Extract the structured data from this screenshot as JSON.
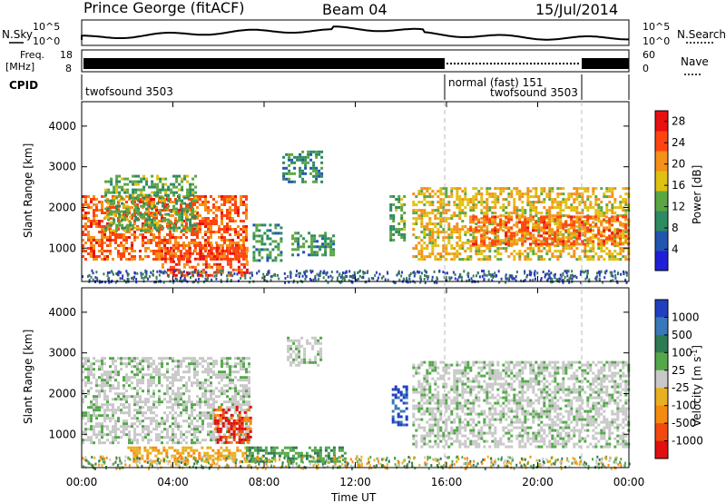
{
  "header": {
    "station": "Prince George (fitACF)",
    "beam": "Beam 04",
    "date": "15/Jul/2014"
  },
  "strip": {
    "nsky_label": "N.Sky",
    "nsky_ticks": [
      "10^5",
      "10^0"
    ],
    "nsearch_ticks": [
      "10^5",
      "10^0"
    ],
    "nsearch_label": "N.Search",
    "freq_label": [
      "Freq.",
      "[MHz]"
    ],
    "freq_ticks": [
      "18",
      "8"
    ],
    "nave_ticks": [
      "60",
      "0"
    ],
    "nave_label": "Nave",
    "cpid_label": "CPID",
    "cpid_segments": [
      {
        "label": "twofsound 3503",
        "start_hour": 0
      },
      {
        "label": "normal (fast) 151",
        "start_hour": 16
      },
      {
        "label": "twofsound 3503",
        "start_hour": 16
      }
    ]
  },
  "chart_data": [
    {
      "type": "heatmap",
      "panel": "power",
      "ylabel": "Slant Range [km]",
      "ylim": [
        180,
        4600
      ],
      "xlim_hours": [
        0,
        24
      ],
      "yticks": [
        1000,
        2000,
        3000,
        4000
      ],
      "colorbar": {
        "label": "Power [dB]",
        "ticks": [
          "4",
          "8",
          "12",
          "16",
          "20",
          "24",
          "28"
        ],
        "range": [
          0,
          30
        ],
        "colors": [
          "#1f1fd8",
          "#2255b0",
          "#2e8a60",
          "#5aa642",
          "#e0c010",
          "#f59018",
          "#ff4410",
          "#e81010"
        ]
      },
      "blobs": [
        {
          "t0": 0.0,
          "t1": 7.2,
          "r0": 700,
          "r1": 2300,
          "level": 24
        },
        {
          "t0": 3.5,
          "t1": 7.3,
          "r0": 350,
          "r1": 1100,
          "level": 26
        },
        {
          "t0": 1.0,
          "t1": 5.0,
          "r0": 1400,
          "r1": 2800,
          "level": 12
        },
        {
          "t0": 7.5,
          "t1": 8.7,
          "r0": 700,
          "r1": 1600,
          "level": 10
        },
        {
          "t0": 9.2,
          "t1": 11.0,
          "r0": 800,
          "r1": 1400,
          "level": 10
        },
        {
          "t0": 8.8,
          "t1": 10.5,
          "r0": 2600,
          "r1": 3400,
          "level": 8
        },
        {
          "t0": 13.5,
          "t1": 14.2,
          "r0": 1200,
          "r1": 2300,
          "level": 12
        },
        {
          "t0": 14.5,
          "t1": 24.0,
          "r0": 700,
          "r1": 2500,
          "level": 18
        },
        {
          "t0": 17.0,
          "t1": 24.0,
          "r0": 1100,
          "r1": 1800,
          "level": 24
        }
      ]
    },
    {
      "type": "heatmap",
      "panel": "velocity",
      "xlabel": "Time UT",
      "ylabel": "Slant Range [km]",
      "ylim": [
        180,
        4600
      ],
      "xlim_hours": [
        0,
        24
      ],
      "xticks": [
        "00:00",
        "04:00",
        "08:00",
        "12:00",
        "16:00",
        "20:00",
        "00:00"
      ],
      "yticks": [
        1000,
        2000,
        3000,
        4000
      ],
      "colorbar": {
        "label": "Velocity [m s^-1]",
        "ticks": [
          "1000",
          "500",
          "100",
          "25",
          "-25",
          "-100",
          "-500",
          "-1000"
        ],
        "colors": [
          "#2040c0",
          "#3878b8",
          "#2e7a52",
          "#54a84a",
          "#c8c8c8",
          "#e8b020",
          "#f58a10",
          "#f04a10",
          "#e01010"
        ]
      },
      "blobs": [
        {
          "t0": 0.0,
          "t1": 7.3,
          "r0": 800,
          "r1": 2900,
          "level": "gray"
        },
        {
          "t0": 5.8,
          "t1": 7.4,
          "r0": 800,
          "r1": 1700,
          "level": "red"
        },
        {
          "t0": 2.0,
          "t1": 7.3,
          "r0": 350,
          "r1": 700,
          "level": "orange"
        },
        {
          "t0": 7.2,
          "t1": 11.5,
          "r0": 300,
          "r1": 700,
          "level": "green"
        },
        {
          "t0": 9.0,
          "t1": 10.5,
          "r0": 2700,
          "r1": 3400,
          "level": "gray"
        },
        {
          "t0": 13.6,
          "t1": 14.2,
          "r0": 1200,
          "r1": 2200,
          "level": "blue"
        },
        {
          "t0": 14.5,
          "t1": 24.0,
          "r0": 700,
          "r1": 2800,
          "level": "gray"
        }
      ]
    }
  ]
}
